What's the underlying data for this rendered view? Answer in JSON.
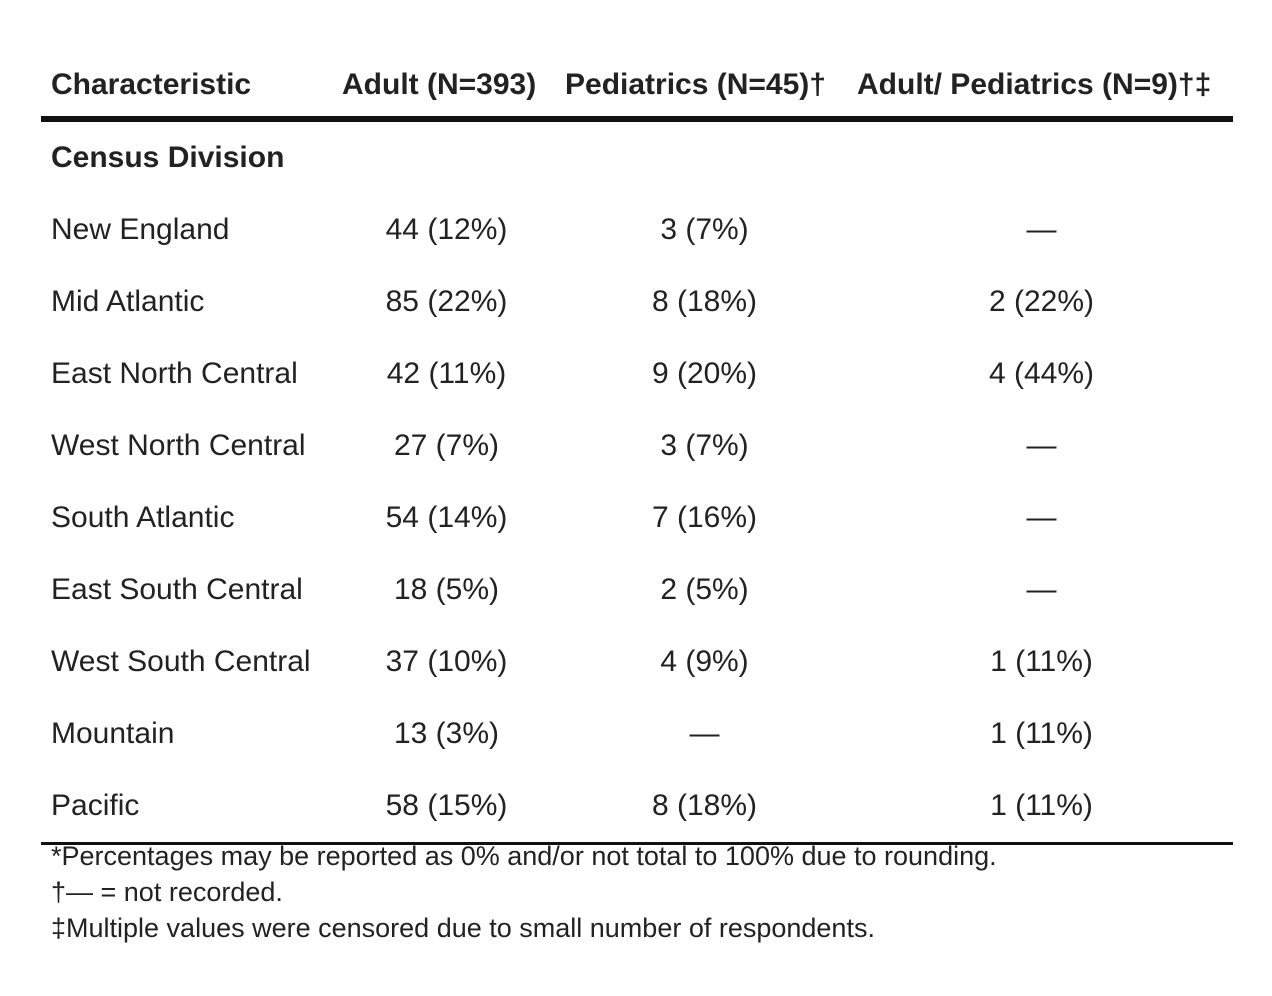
{
  "table": {
    "headers": [
      "Characteristic",
      "Adult (N=393)",
      "Pediatrics (N=45)†",
      "Adult/ Pediatrics (N=9)†‡"
    ],
    "section_title": "Census Division",
    "rows": [
      {
        "label": "New England",
        "adult": "44 (12%)",
        "pediatrics": "3 (7%)",
        "adult_pediatrics": "—"
      },
      {
        "label": "Mid Atlantic",
        "adult": "85 (22%)",
        "pediatrics": "8 (18%)",
        "adult_pediatrics": "2 (22%)"
      },
      {
        "label": "East North Central",
        "adult": "42 (11%)",
        "pediatrics": "9 (20%)",
        "adult_pediatrics": "4 (44%)"
      },
      {
        "label": "West North Central",
        "adult": "27 (7%)",
        "pediatrics": "3 (7%)",
        "adult_pediatrics": "—"
      },
      {
        "label": "South Atlantic",
        "adult": "54 (14%)",
        "pediatrics": "7 (16%)",
        "adult_pediatrics": "—"
      },
      {
        "label": "East South Central",
        "adult": "18 (5%)",
        "pediatrics": "2 (5%)",
        "adult_pediatrics": "—"
      },
      {
        "label": "West South Central",
        "adult": "37 (10%)",
        "pediatrics": "4 (9%)",
        "adult_pediatrics": "1 (11%)"
      },
      {
        "label": "Mountain",
        "adult": "13 (3%)",
        "pediatrics": "—",
        "adult_pediatrics": "1 (11%)"
      },
      {
        "label": "Pacific",
        "adult": "58 (15%)",
        "pediatrics": "8 (18%)",
        "adult_pediatrics": "1 (11%)"
      }
    ]
  },
  "footnotes": [
    "*Percentages may be reported as 0% and/or not total to 100% due to rounding.",
    "†— = not recorded.",
    "‡Multiple values were censored due to small number of respondents."
  ]
}
